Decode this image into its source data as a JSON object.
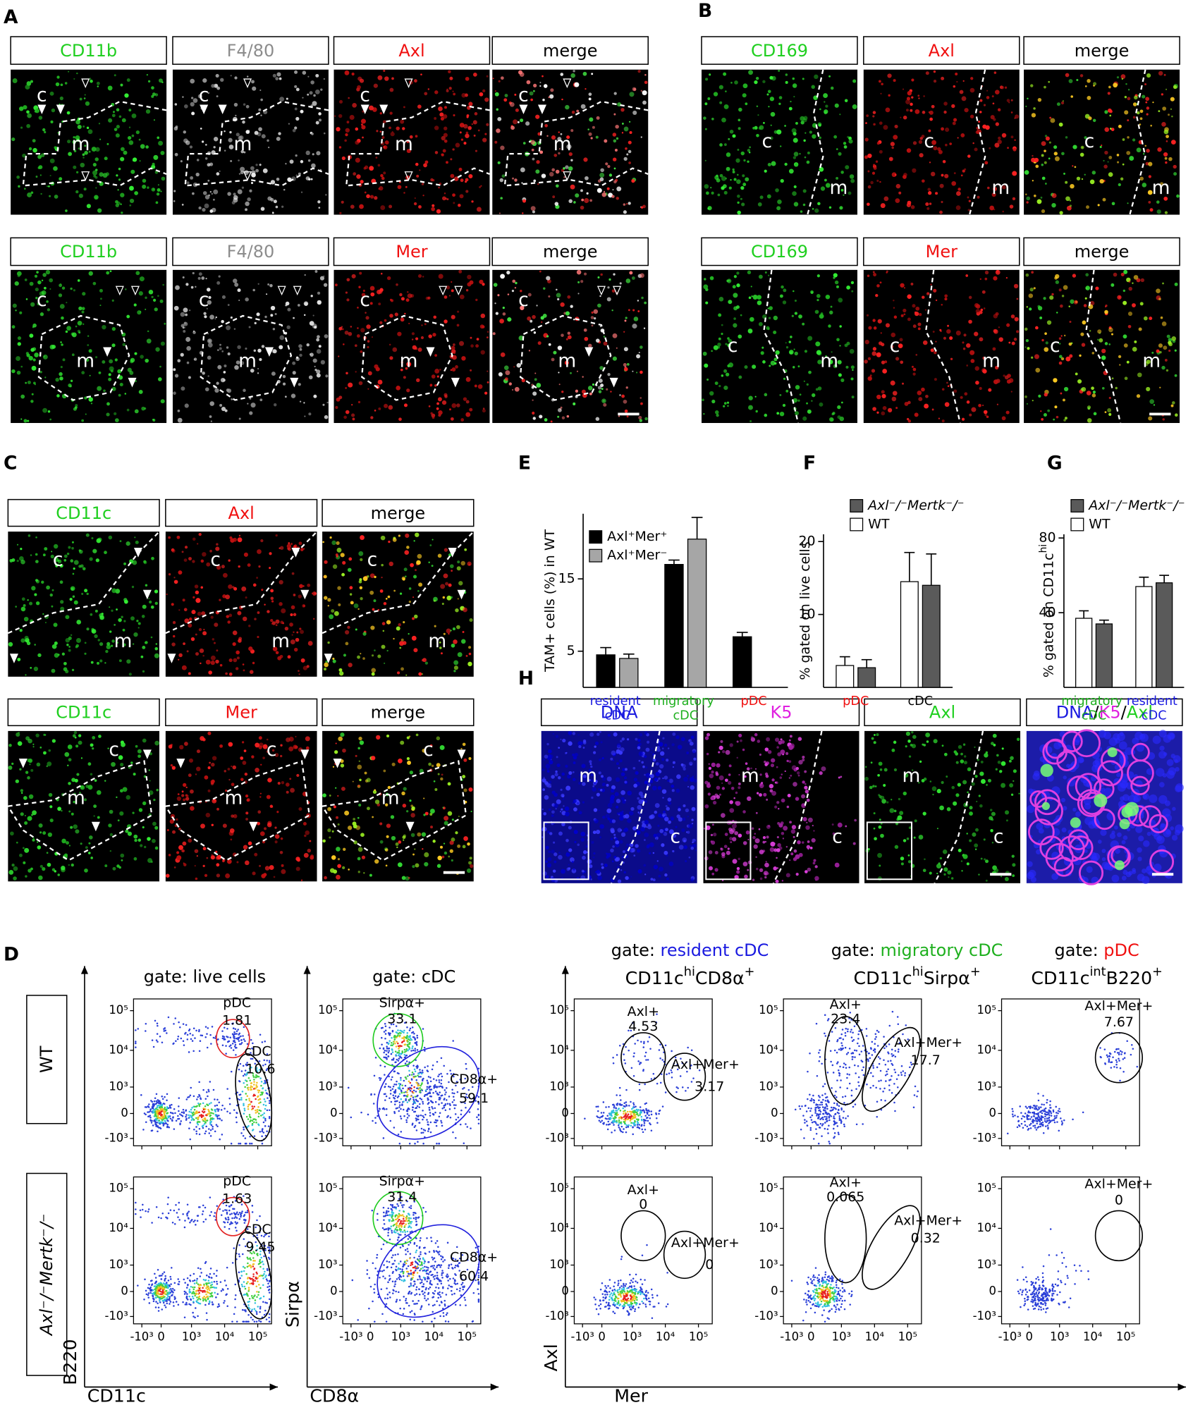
{
  "figure": {
    "A": {
      "label": "A",
      "rows": [
        [
          "CD11b",
          "F4/80",
          "Axl",
          "merge"
        ],
        [
          "CD11b",
          "F4/80",
          "Mer",
          "merge"
        ]
      ],
      "colors": [
        "#1fcf1f",
        "#8c8c8c",
        "#f01010",
        "#000000"
      ],
      "regions": [
        "c",
        "m"
      ]
    },
    "B": {
      "label": "B",
      "rows": [
        [
          "CD169",
          "Axl",
          "merge"
        ],
        [
          "CD169",
          "Mer",
          "merge"
        ]
      ],
      "colors": [
        "#1fcf1f",
        "#f01010",
        "#000000"
      ],
      "regions": [
        "c",
        "m"
      ]
    },
    "C": {
      "label": "C",
      "rows": [
        [
          "CD11c",
          "Axl",
          "merge"
        ],
        [
          "CD11c",
          "Mer",
          "merge"
        ]
      ],
      "colors": [
        "#1fcf1f",
        "#f01010",
        "#000000"
      ],
      "regions": [
        "c",
        "m"
      ]
    },
    "H": {
      "label": "H",
      "headers": [
        "DNA",
        "K5",
        "Axl"
      ],
      "colors": [
        "#1a1ae0",
        "#e020e0",
        "#1fcf1f"
      ],
      "merge_parts": [
        "DNA",
        "/",
        "K5",
        "/",
        "Axl"
      ],
      "merge_colors": [
        "#1a1ae0",
        "#000000",
        "#e020e0",
        "#000000",
        "#1fcf1f"
      ],
      "regions": [
        "m",
        "c"
      ]
    },
    "D": {
      "label": "D",
      "row_labels": [
        "WT",
        "Axl⁻/⁻Mertk⁻/⁻"
      ],
      "ticks": [
        "-10³",
        "0",
        "10³",
        "10⁴",
        "10⁵"
      ],
      "shared_x_label": "Mer",
      "shared_y_label": "Axl",
      "columns": [
        {
          "gate_prefix": "gate:",
          "gate": "live cells",
          "gate_color": "#000000",
          "x_label": "CD11c",
          "y_label": "B220",
          "gates": [
            {
              "name": "pDC",
              "values": [
                1.81,
                1.63
              ]
            },
            {
              "name": "cDC",
              "values": [
                10.6,
                9.45
              ]
            }
          ]
        },
        {
          "gate_prefix": "gate:",
          "gate": "cDC",
          "gate_color": "#000000",
          "x_label": "CD8α",
          "y_label": "Sirpα",
          "gates": [
            {
              "name": "Sirpα+",
              "values": [
                33.1,
                31.4
              ]
            },
            {
              "name": "CD8α+",
              "values": [
                59.1,
                60.4
              ]
            }
          ]
        },
        {
          "gate_prefix": "gate:",
          "gate": "resident cDC",
          "gate_color": "#1a1ae0",
          "subtitle": [
            "CD11c",
            "hi",
            "CD8α",
            "+"
          ],
          "gates": [
            {
              "name": "Axl+",
              "values": [
                4.53,
                0
              ]
            },
            {
              "name": "Axl+Mer+",
              "values": [
                3.17,
                0
              ]
            }
          ]
        },
        {
          "gate_prefix": "gate:",
          "gate": "migratory cDC",
          "gate_color": "#1fb01f",
          "subtitle": [
            "CD11c",
            "hi",
            "Sirpα",
            "+"
          ],
          "gates": [
            {
              "name": "Axl+",
              "values": [
                23.4,
                0.065
              ]
            },
            {
              "name": "Axl+Mer+",
              "values": [
                17.7,
                0.32
              ]
            }
          ]
        },
        {
          "gate_prefix": "gate:",
          "gate": "pDC",
          "gate_color": "#f01010",
          "subtitle": [
            "CD11c",
            "int",
            "B220",
            "+"
          ],
          "gates": [
            {
              "name": "Axl+Mer+",
              "values": [
                7.67,
                0
              ]
            }
          ]
        }
      ]
    }
  },
  "chart_data": [
    {
      "label": "E",
      "type": "bar",
      "y_label": "TAM+ cells (%) in WT",
      "categories": [
        "resident cDC",
        "migratory cDC",
        "pDC"
      ],
      "category_colors": [
        "#1a1ae0",
        "#1fb01f",
        "#f01010"
      ],
      "series": [
        {
          "name": "Axl⁺Mer⁺",
          "color": "#000000",
          "values": [
            4.5,
            17,
            7
          ],
          "errors": [
            1,
            0.6,
            0.6
          ]
        },
        {
          "name": "Axl⁺Mer⁻",
          "color": "#a6a6a6",
          "values": [
            4,
            20.5,
            null
          ],
          "errors": [
            0.6,
            3,
            null
          ]
        }
      ],
      "ylim": [
        0,
        24
      ],
      "yticks": [
        5,
        15
      ]
    },
    {
      "label": "F",
      "type": "bar",
      "y_label": "% gated on live cells",
      "categories": [
        "pDC",
        "cDC"
      ],
      "category_colors": [
        "#f01010",
        "#000000"
      ],
      "series": [
        {
          "name": "WT",
          "color": "#ffffff",
          "values": [
            3,
            14.5
          ],
          "errors": [
            1.2,
            4
          ]
        },
        {
          "name": "Axl⁻/⁻Mertk⁻/⁻",
          "color": "#5a5a5a",
          "italic": true,
          "values": [
            2.7,
            14
          ],
          "errors": [
            1.1,
            4.3
          ]
        }
      ],
      "ylim": [
        0,
        21
      ],
      "yticks": [
        10,
        20
      ]
    },
    {
      "label": "G",
      "type": "bar",
      "y_label": [
        "% gated on CD11c",
        "hi"
      ],
      "categories": [
        "migratory cDC",
        "resident cDC"
      ],
      "category_colors": [
        "#1fb01f",
        "#1a1ae0"
      ],
      "series": [
        {
          "name": "WT",
          "color": "#ffffff",
          "values": [
            37,
            54
          ],
          "errors": [
            4,
            5
          ]
        },
        {
          "name": "Axl⁻/⁻Mertk⁻/⁻",
          "color": "#5a5a5a",
          "italic": true,
          "values": [
            34,
            56
          ],
          "errors": [
            2,
            4
          ]
        }
      ],
      "ylim": [
        0,
        82
      ],
      "yticks": [
        40,
        80
      ]
    }
  ]
}
